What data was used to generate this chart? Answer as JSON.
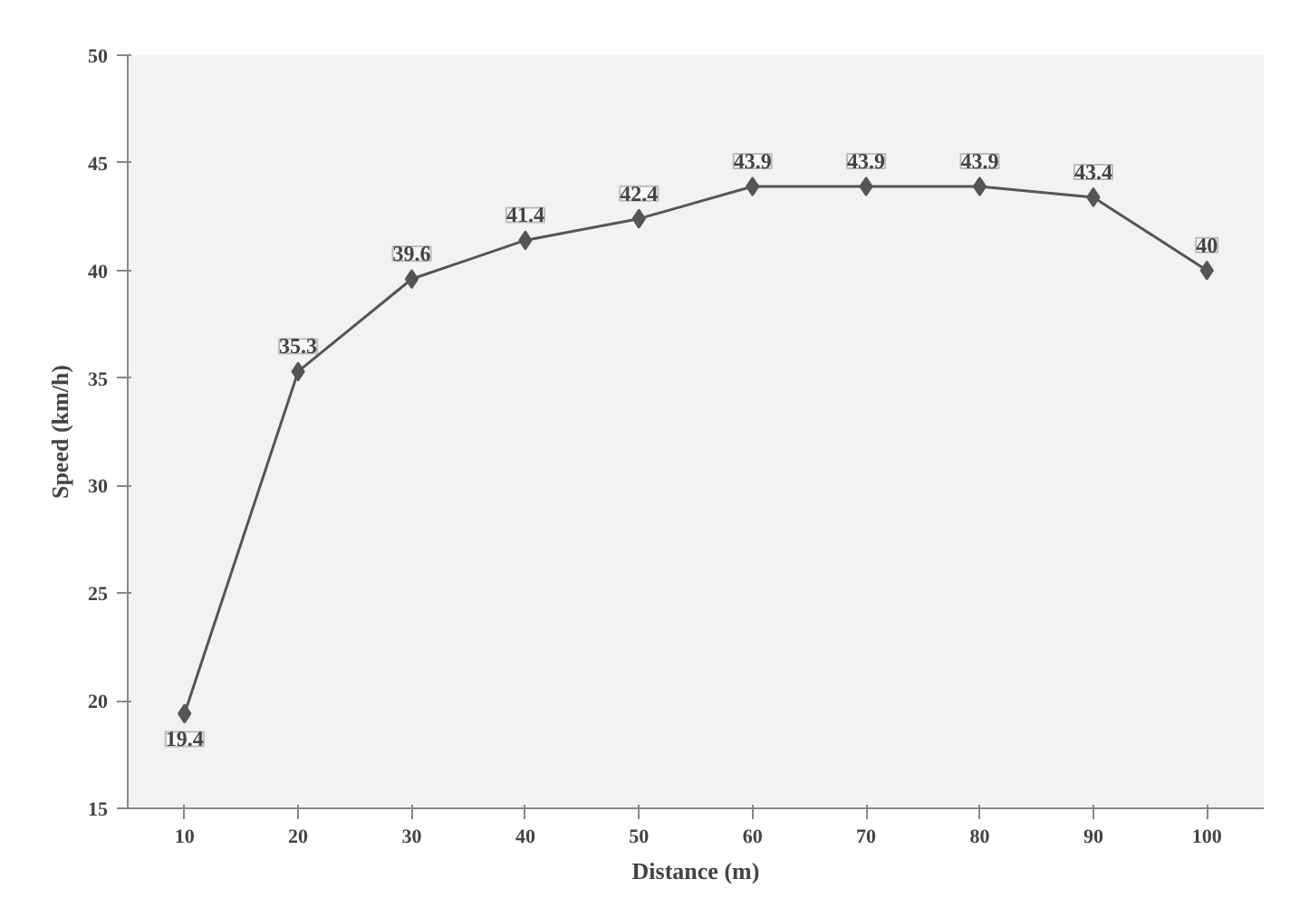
{
  "chart_data": {
    "type": "line",
    "xlabel": "Distance (m)",
    "ylabel": "Speed (km/h)",
    "x": [
      10,
      20,
      30,
      40,
      50,
      60,
      70,
      80,
      90,
      100
    ],
    "series": [
      {
        "color": "#555555",
        "values": [
          19.4,
          35.3,
          39.6,
          41.4,
          42.4,
          43.9,
          43.9,
          43.9,
          43.4,
          40
        ]
      }
    ],
    "value_labels": [
      "19.4",
      "35.3",
      "39.6",
      "41.4",
      "42.4",
      "43.9",
      "43.9",
      "43.9",
      "43.4",
      "40"
    ],
    "xlim": [
      5,
      105
    ],
    "xticks": [
      10,
      20,
      30,
      40,
      50,
      60,
      70,
      80,
      90,
      100
    ],
    "ylim": [
      15,
      50
    ],
    "yticks": [
      15,
      20,
      25,
      30,
      35,
      40,
      45,
      50
    ],
    "grid": false,
    "marker": "diamond",
    "line_style": "solid"
  }
}
